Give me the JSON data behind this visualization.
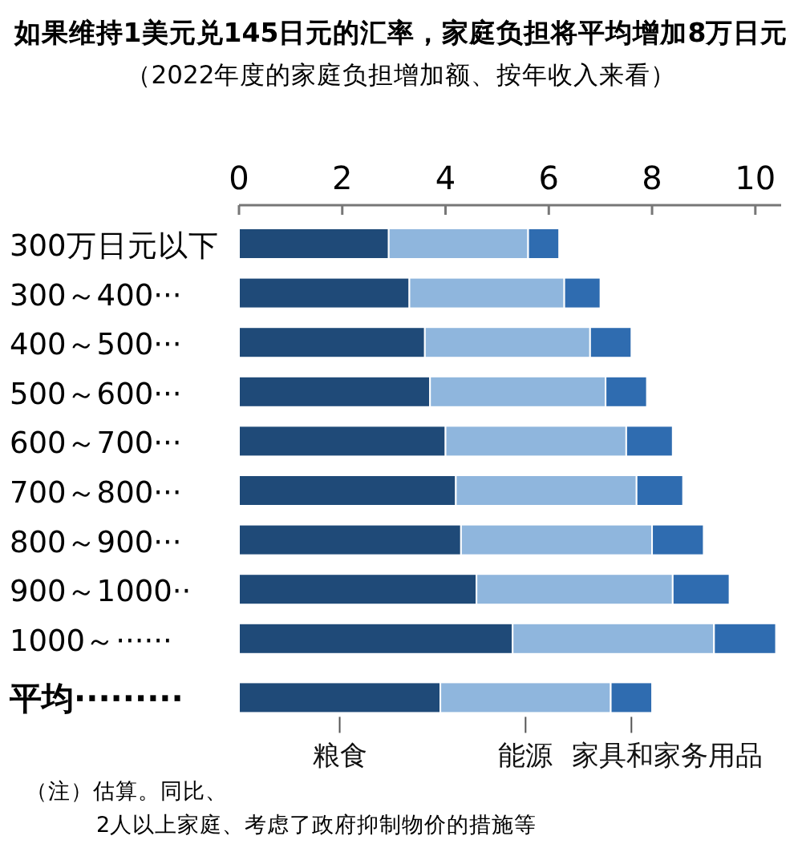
{
  "chart_data": {
    "type": "bar",
    "orientation": "horizontal",
    "stacked": true,
    "title": "如果维持1美元兑145日元的汇率，家庭负担将平均增加8万日元",
    "subtitle": "（2022年度的家庭负担增加额、按年收入来看）",
    "categories": [
      "300万日元以下",
      "300～400···",
      "400～500···",
      "500～600···",
      "600～700···",
      "700～800···",
      "800～900···",
      "900～1000··",
      "1000～······",
      "平均·········"
    ],
    "series": [
      {
        "name": "粮食",
        "color": "#1f4a78",
        "values": [
          2.9,
          3.3,
          3.6,
          3.7,
          4.0,
          4.2,
          4.3,
          4.6,
          5.3,
          3.9
        ]
      },
      {
        "name": "能源",
        "color": "#8fb6dd",
        "values": [
          2.7,
          3.0,
          3.2,
          3.4,
          3.5,
          3.5,
          3.7,
          3.8,
          3.9,
          3.3
        ]
      },
      {
        "name": "家具和家务用品",
        "color": "#2f6cb0",
        "values": [
          0.6,
          0.7,
          0.8,
          0.8,
          0.9,
          0.9,
          1.0,
          1.1,
          1.2,
          0.8
        ]
      }
    ],
    "xlim": [
      0,
      10.5
    ],
    "xticks": [
      0,
      2,
      4,
      6,
      8,
      10
    ],
    "grid": false,
    "legend": "bottom",
    "annotations": [
      "（注）估算。同比、2人以上家庭、考虑了政府抑制物价的措施等"
    ]
  }
}
